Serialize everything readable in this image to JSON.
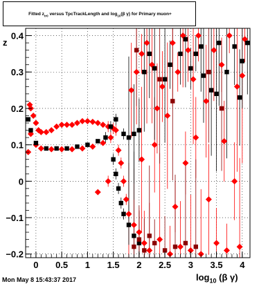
{
  "title_parts": {
    "pre": "Fitted  z",
    "sub1": "tr0",
    "mid": "  versus TpcTrackLength and log",
    "sub2": "10",
    "post": "(β γ) for Primary muon+"
  },
  "timestamp": "Mon May  8 15:43:37 2017",
  "xlabel_parts": {
    "pre": "log",
    "sub": "10",
    "post": " (β γ)"
  },
  "ylabel": "z",
  "colors": {
    "red": "#ff0000",
    "black": "#000000",
    "dark_red": "#8b0000"
  },
  "chart_data": {
    "type": "scatter",
    "xlim": [
      -0.2,
      4.15
    ],
    "ylim": [
      -0.21,
      0.42
    ],
    "x_ticks": [
      0,
      0.5,
      1,
      1.5,
      2,
      2.5,
      3,
      3.5,
      4
    ],
    "x_tick_labels": [
      "0",
      "0.5",
      "1",
      "1.5",
      "2",
      "2.5",
      "3",
      "3.5",
      "4"
    ],
    "y_ticks": [
      -0.2,
      -0.1,
      0,
      0.1,
      0.2,
      0.3,
      0.4
    ],
    "y_tick_labels": [
      "−0.2",
      "−0.1",
      "0",
      "0.1",
      "0.2",
      "0.3",
      "0.4"
    ],
    "grid": true,
    "series": [
      {
        "color": "#ff0000",
        "marker": "diamond",
        "points": [
          [
            -0.15,
            0.08
          ],
          [
            -0.12,
            0.21
          ],
          [
            -0.1,
            0.2
          ],
          [
            -0.05,
            0.18
          ],
          [
            0.0,
            0.16
          ],
          [
            0.05,
            0.14
          ],
          [
            0.1,
            0.135
          ],
          [
            0.2,
            0.135
          ],
          [
            0.3,
            0.14
          ],
          [
            0.4,
            0.15
          ],
          [
            0.5,
            0.155
          ],
          [
            0.6,
            0.155
          ],
          [
            0.7,
            0.155
          ],
          [
            0.8,
            0.16
          ],
          [
            0.9,
            0.165
          ],
          [
            1.0,
            0.165
          ],
          [
            1.1,
            0.163
          ],
          [
            1.2,
            0.16
          ],
          [
            1.3,
            0.155
          ],
          [
            1.4,
            0.15
          ],
          [
            1.5,
            0.145
          ],
          [
            -0.1,
            0.13
          ],
          [
            0.0,
            0.1
          ],
          [
            0.1,
            0.09
          ],
          [
            0.3,
            0.088
          ],
          [
            0.5,
            0.088
          ],
          [
            0.7,
            0.088
          ],
          [
            0.9,
            0.09
          ],
          [
            1.1,
            0.095
          ],
          [
            1.3,
            0.105
          ],
          [
            1.45,
            0.12
          ],
          [
            1.55,
            0.14
          ],
          [
            1.6,
            0.085
          ],
          [
            1.65,
            0.05
          ],
          [
            1.7,
            0.0
          ],
          [
            1.75,
            -0.05
          ],
          [
            1.8,
            -0.09
          ],
          [
            1.9,
            -0.12
          ],
          [
            2.0,
            -0.14
          ],
          [
            2.1,
            -0.17
          ],
          [
            1.85,
            0.25
          ],
          [
            1.95,
            0.3
          ],
          [
            2.05,
            0.35
          ],
          [
            2.15,
            0.38
          ],
          [
            2.25,
            0.32
          ],
          [
            2.35,
            0.2
          ],
          [
            2.45,
            0.26
          ],
          [
            2.55,
            0.18
          ],
          [
            2.65,
            0.38
          ],
          [
            2.75,
            0.3
          ],
          [
            2.85,
            0.4
          ],
          [
            2.95,
            0.36
          ],
          [
            3.05,
            0.28
          ],
          [
            3.15,
            0.4
          ],
          [
            3.3,
            0.22
          ],
          [
            3.45,
            0.36
          ],
          [
            3.6,
            0.32
          ],
          [
            3.75,
            0.4
          ],
          [
            3.9,
            0.26
          ],
          [
            4.0,
            0.29
          ],
          [
            4.05,
            0.39
          ],
          [
            2.2,
            -0.19
          ],
          [
            2.4,
            -0.16
          ],
          [
            2.6,
            -0.2
          ],
          [
            2.8,
            -0.18
          ],
          [
            3.0,
            -0.19
          ],
          [
            3.2,
            -0.2
          ],
          [
            3.5,
            -0.17
          ],
          [
            3.7,
            -0.19
          ],
          [
            3.95,
            -0.18
          ],
          [
            1.2,
            -0.03
          ],
          [
            1.4,
            0.0
          ],
          [
            2.3,
            0.1
          ],
          [
            2.9,
            0.05
          ],
          [
            3.35,
            -0.05
          ],
          [
            3.85,
            0.0
          ],
          [
            2.7,
            -0.07
          ],
          [
            2.05,
            0.06
          ],
          [
            3.1,
            0.12
          ],
          [
            3.65,
            0.11
          ]
        ]
      },
      {
        "color": "#000000",
        "marker": "square",
        "points": [
          [
            -0.15,
            0.17
          ],
          [
            -0.1,
            0.14
          ],
          [
            0.0,
            0.105
          ],
          [
            0.2,
            0.09
          ],
          [
            0.4,
            0.09
          ],
          [
            0.6,
            0.09
          ],
          [
            0.8,
            0.095
          ],
          [
            1.0,
            0.1
          ],
          [
            1.2,
            0.11
          ],
          [
            1.35,
            0.12
          ],
          [
            1.45,
            0.15
          ],
          [
            1.55,
            0.17
          ],
          [
            1.5,
            0.06
          ],
          [
            1.55,
            0.02
          ],
          [
            1.6,
            -0.02
          ],
          [
            1.65,
            -0.06
          ],
          [
            1.7,
            -0.09
          ],
          [
            1.8,
            -0.12
          ],
          [
            1.9,
            -0.15
          ],
          [
            2.0,
            -0.17
          ],
          [
            1.7,
            0.13
          ],
          [
            1.8,
            0.12
          ],
          [
            1.9,
            0.13
          ],
          [
            2.0,
            0.14
          ],
          [
            2.1,
            0.3
          ],
          [
            2.2,
            0.35
          ],
          [
            2.3,
            0.31
          ],
          [
            2.5,
            0.28
          ],
          [
            2.6,
            0.32
          ],
          [
            2.8,
            0.35
          ],
          [
            2.9,
            0.39
          ],
          [
            3.0,
            0.31
          ],
          [
            3.1,
            0.35
          ],
          [
            3.2,
            0.37
          ],
          [
            3.4,
            0.25
          ],
          [
            3.55,
            0.38
          ],
          [
            3.7,
            0.3
          ],
          [
            3.85,
            0.37
          ],
          [
            4.0,
            0.33
          ],
          [
            4.1,
            0.38
          ],
          [
            3.25,
            0.29
          ],
          [
            3.5,
            0.24
          ],
          [
            3.95,
            0.23
          ]
        ]
      },
      {
        "color": "#8b0000",
        "marker": "square",
        "points": [
          [
            1.9,
            -0.18
          ],
          [
            2.0,
            -0.16
          ],
          [
            2.1,
            -0.19
          ],
          [
            2.2,
            -0.15
          ],
          [
            2.3,
            -0.17
          ],
          [
            2.5,
            -0.19
          ],
          [
            2.7,
            -0.18
          ],
          [
            2.9,
            -0.17
          ],
          [
            3.1,
            -0.18
          ],
          [
            2.4,
            0.28
          ],
          [
            2.65,
            0.22
          ],
          [
            3.35,
            0.3
          ],
          [
            3.6,
            0.2
          ],
          [
            1.95,
            0.36
          ]
        ]
      }
    ]
  }
}
